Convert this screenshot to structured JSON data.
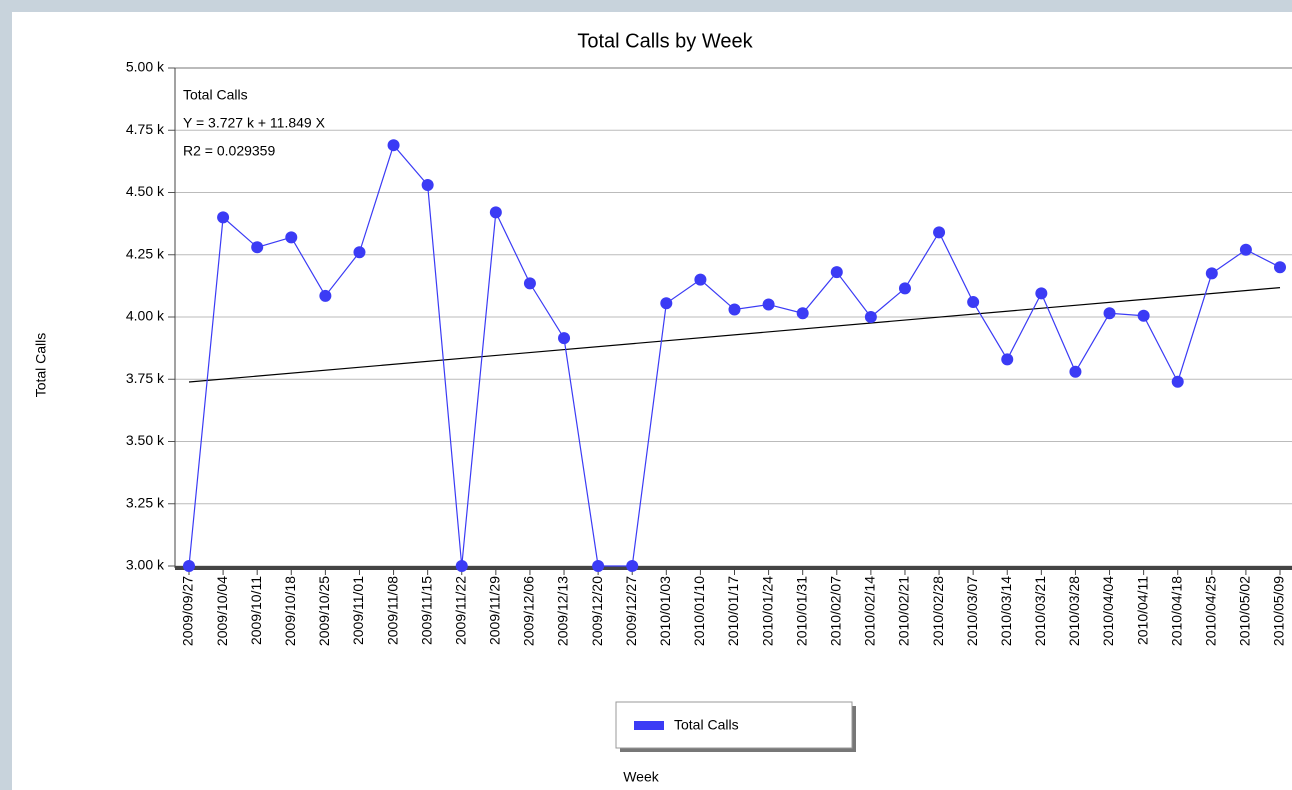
{
  "chart_data": {
    "type": "line",
    "title": "Total Calls by Week",
    "x_label": "Week",
    "y_label": "Total Calls",
    "categories": [
      "2009/09/27",
      "2009/10/04",
      "2009/10/11",
      "2009/10/18",
      "2009/10/25",
      "2009/11/01",
      "2009/11/08",
      "2009/11/15",
      "2009/11/22",
      "2009/11/29",
      "2009/12/06",
      "2009/12/13",
      "2009/12/20",
      "2009/12/27",
      "2010/01/03",
      "2010/01/10",
      "2010/01/17",
      "2010/01/24",
      "2010/01/31",
      "2010/02/07",
      "2010/02/14",
      "2010/02/21",
      "2010/02/28",
      "2010/03/07",
      "2010/03/14",
      "2010/03/21",
      "2010/03/28",
      "2010/04/04",
      "2010/04/11",
      "2010/04/18",
      "2010/04/25",
      "2010/05/02",
      "2010/05/09"
    ],
    "series": [
      {
        "name": "Total Calls",
        "color": "#3b3bf5",
        "values": [
          3000,
          4400,
          4280,
          4320,
          4085,
          4260,
          4690,
          4530,
          3000,
          4420,
          4135,
          3915,
          3000,
          3000,
          4055,
          4150,
          4030,
          4050,
          4015,
          4180,
          4000,
          4115,
          4340,
          4060,
          3830,
          4095,
          3780,
          4015,
          4005,
          3740,
          4175,
          4270,
          4200
        ]
      }
    ],
    "trendline": {
      "name": "Total Calls",
      "equation": "Y = 3.727 k + 11.849 X",
      "r2": "R2 = 0.029359",
      "intercept": 3727,
      "slope": 11.849,
      "color": "#000000"
    },
    "ylim": [
      3000,
      5000
    ],
    "yticks": [
      {
        "value": 3000,
        "label": "3.00 k"
      },
      {
        "value": 3250,
        "label": "3.25 k"
      },
      {
        "value": 3500,
        "label": "3.50 k"
      },
      {
        "value": 3750,
        "label": "3.75 k"
      },
      {
        "value": 4000,
        "label": "4.00 k"
      },
      {
        "value": 4250,
        "label": "4.25 k"
      },
      {
        "value": 4500,
        "label": "4.50 k"
      },
      {
        "value": 4750,
        "label": "4.75 k"
      },
      {
        "value": 5000,
        "label": "5.00 k"
      }
    ],
    "grid": true,
    "legend": "bottom"
  }
}
